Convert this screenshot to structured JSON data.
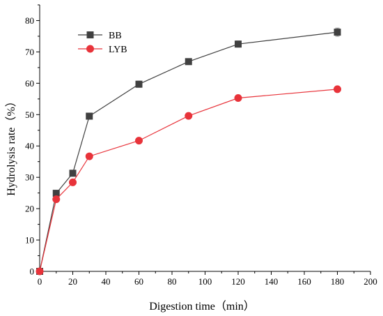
{
  "chart_data": {
    "type": "line",
    "xlabel": "Digestion time（min）",
    "ylabel": "Hydrolysis rate（%）",
    "xlim": [
      0,
      200
    ],
    "ylim": [
      0,
      85
    ],
    "xticks": [
      0,
      20,
      40,
      60,
      80,
      100,
      120,
      140,
      160,
      180,
      200
    ],
    "yticks": [
      0,
      10,
      20,
      30,
      40,
      50,
      60,
      70,
      80
    ],
    "grid": false,
    "legend_position": "top-left",
    "series": [
      {
        "name": "BB",
        "color": "#404040",
        "marker": "square",
        "x": [
          0,
          10,
          20,
          30,
          60,
          90,
          120,
          180
        ],
        "y": [
          0,
          24.9,
          31.3,
          49.5,
          59.7,
          66.9,
          72.5,
          76.3
        ],
        "err": [
          0,
          0.6,
          0.6,
          0.5,
          1.0,
          0.9,
          1.0,
          1.3
        ]
      },
      {
        "name": "LYB",
        "color": "#e8333a",
        "marker": "circle",
        "x": [
          0,
          10,
          20,
          30,
          60,
          90,
          120,
          180
        ],
        "y": [
          0,
          23.0,
          28.4,
          36.7,
          41.7,
          49.6,
          55.3,
          58.1
        ],
        "err": [
          0,
          0.5,
          0.6,
          0.4,
          0.5,
          0.5,
          0.8,
          0.7
        ]
      }
    ]
  }
}
